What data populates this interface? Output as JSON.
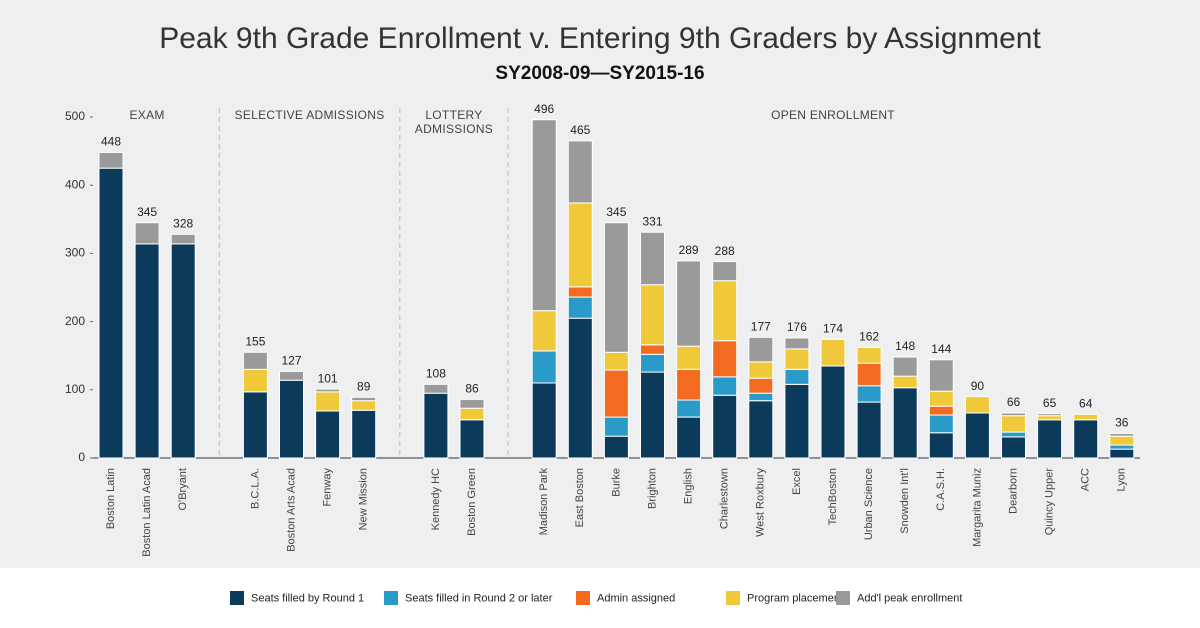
{
  "chart_data": {
    "type": "stacked_bar",
    "title": "Peak 9th Grade Enrollment v. Entering 9th Graders by Assignment",
    "subtitle": "SY2008-09—SY2015-16",
    "groups": [
      {
        "name": "EXAM",
        "categories": [
          "Boston Latin",
          "Boston Latin Acad",
          "O'Bryant"
        ]
      },
      {
        "name": "SELECTIVE ADMISSIONS",
        "categories": [
          "B.C.L.A.",
          "Boston Arts Acad",
          "Fenway",
          "New Mission"
        ]
      },
      {
        "name": "LOTTERY ADMISSIONS",
        "categories": [
          "Kennedy HC",
          "Boston Green"
        ]
      },
      {
        "name": "OPEN ENROLLMENT",
        "categories": [
          "Madison Park",
          "East Boston",
          "Burke",
          "Brighton",
          "English",
          "Charlestown",
          "West Roxbury",
          "Excel",
          "TechBoston",
          "Urban Science",
          "Snowden Int'l",
          "C.A.S.H.",
          "Margarita Muniz",
          "Dearborn",
          "Quincy Upper",
          "ACC",
          "Lyon"
        ]
      }
    ],
    "series": [
      {
        "name": "Seats filled by Round 1",
        "color": "#0b3a5a",
        "values": [
          425,
          314,
          314,
          97,
          114,
          69,
          70,
          95,
          56,
          110,
          205,
          32,
          126,
          60,
          92,
          84,
          108,
          135,
          82,
          103,
          37,
          66,
          31,
          56,
          56,
          13
        ]
      },
      {
        "name": "Seats filled in Round 2 or later",
        "color": "#2a9bc9",
        "values": [
          0,
          0,
          0,
          0,
          0,
          0,
          0,
          0,
          0,
          47,
          31,
          28,
          26,
          25,
          27,
          11,
          22,
          0,
          24,
          0,
          26,
          0,
          7,
          0,
          0,
          6
        ]
      },
      {
        "name": "Admin assigned",
        "color": "#f26b21",
        "values": [
          0,
          0,
          0,
          0,
          0,
          0,
          0,
          0,
          0,
          0,
          15,
          69,
          14,
          45,
          53,
          22,
          0,
          0,
          33,
          0,
          13,
          0,
          0,
          0,
          0,
          0
        ]
      },
      {
        "name": "Program placement",
        "color": "#f0c93a",
        "values": [
          0,
          0,
          0,
          33,
          0,
          28,
          14,
          0,
          17,
          59,
          123,
          26,
          88,
          34,
          88,
          24,
          30,
          39,
          23,
          17,
          22,
          24,
          24,
          6,
          8,
          13
        ]
      },
      {
        "name": "Add'l peak enrollment",
        "color": "#9a9a9a",
        "values": [
          23,
          31,
          14,
          25,
          13,
          4,
          5,
          13,
          13,
          280,
          91,
          190,
          77,
          125,
          28,
          36,
          16,
          0,
          0,
          28,
          46,
          0,
          4,
          3,
          0,
          4
        ]
      }
    ],
    "totals": [
      448,
      345,
      328,
      155,
      127,
      101,
      89,
      108,
      86,
      496,
      465,
      345,
      331,
      289,
      288,
      177,
      176,
      174,
      162,
      148,
      144,
      90,
      66,
      65,
      64,
      36
    ],
    "ylim": [
      0,
      500
    ],
    "yticks": [
      0,
      100,
      200,
      300,
      400,
      500
    ],
    "grid": false
  }
}
